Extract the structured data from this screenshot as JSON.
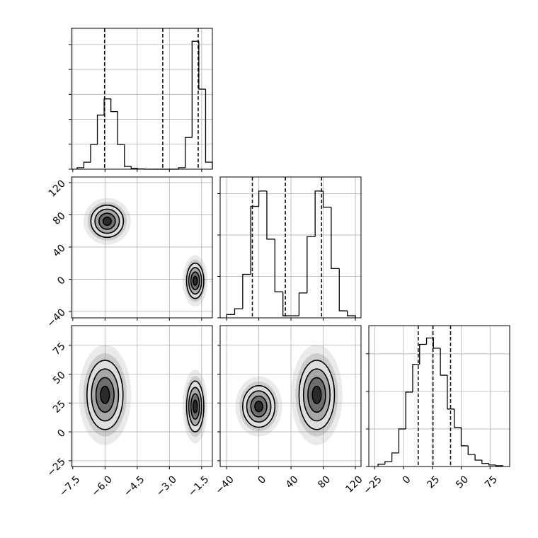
{
  "chart_data": {
    "type": "corner",
    "color": "#000000",
    "grid": true,
    "levels": [
      0.5,
      1,
      1.5,
      2
    ],
    "level_fills": [
      "#2a2a2a",
      "#6e6e6e",
      "#a8a8a8",
      "#dedede"
    ],
    "params": [
      {
        "xlim": [
          -7.56,
          -1.0
        ],
        "ticks": [
          {
            "value": -7.5,
            "label": "−7.5"
          },
          {
            "value": -6.0,
            "label": "−6.0"
          },
          {
            "value": -4.5,
            "label": "−4.5"
          },
          {
            "value": -3.0,
            "label": "−3.0"
          },
          {
            "value": -1.5,
            "label": "−1.5"
          }
        ]
      },
      {
        "xlim": [
          -48,
          127
        ],
        "ticks": [
          {
            "value": -40,
            "label": "−40"
          },
          0,
          40,
          80,
          120
        ]
      },
      {
        "xlim": [
          -30,
          92
        ],
        "ticks": [
          {
            "value": -25,
            "label": "−25"
          },
          0,
          25,
          50,
          75
        ]
      }
    ],
    "histograms": [
      {
        "bins": [
          -7.3,
          -6.985,
          -6.67,
          -6.355,
          -6.04,
          -5.725,
          -5.41,
          -5.095,
          -4.78,
          -4.465,
          -4.15,
          -3.835,
          -3.52,
          -3.205,
          -2.89,
          -2.575,
          -2.26,
          -1.945,
          -1.63,
          -1.315,
          -1.0
        ],
        "counts": [
          6,
          28,
          99,
          217,
          282,
          231,
          99,
          11,
          3,
          1,
          0,
          0,
          0,
          0,
          0,
          6,
          127,
          513,
          321,
          28
        ],
        "ylim": [
          0,
          565
        ],
        "yticks": [
          0,
          100,
          200,
          300,
          400,
          500
        ],
        "quantiles": [
          -6.02,
          -3.31,
          -1.66
        ]
      },
      {
        "bins": [
          -40,
          -30,
          -20,
          -10,
          0,
          10,
          20,
          30,
          40,
          50,
          60,
          70,
          80,
          90,
          100,
          110,
          120
        ],
        "counts": [
          8,
          22,
          105,
          269,
          306,
          190,
          63,
          5,
          5,
          60,
          196,
          306,
          267,
          119,
          17,
          5
        ],
        "ylim": [
          0,
          340
        ],
        "yticks": [
          0,
          100,
          200,
          300
        ],
        "quantiles": [
          -8,
          33,
          78
        ]
      },
      {
        "bins": [
          -22,
          -16,
          -10,
          -4,
          2,
          8,
          14,
          20,
          26,
          32,
          38,
          44,
          50,
          56,
          62,
          68,
          74,
          80,
          86
        ],
        "counts": [
          6,
          13,
          36,
          100,
          198,
          272,
          325,
          342,
          315,
          243,
          153,
          104,
          55,
          32,
          17,
          8,
          4,
          2
        ],
        "ylim": [
          0,
          375
        ],
        "yticks": [
          0,
          100,
          200,
          300
        ],
        "quantiles": [
          12.8,
          25.6,
          40.8
        ]
      }
    ],
    "pairs": [
      {
        "blobs": [
          {
            "cx": -5.9,
            "cy": 72,
            "sx": 0.38,
            "sy": 10
          },
          {
            "cx": -1.8,
            "cy": -2,
            "sx": 0.2,
            "sy": 11
          }
        ]
      },
      {
        "blobs": [
          {
            "cx": -6.0,
            "cy": 32,
            "sx": 0.42,
            "sy": 15
          },
          {
            "cx": -1.8,
            "cy": 22,
            "sx": 0.2,
            "sy": 11
          }
        ]
      },
      {
        "blobs": [
          {
            "cx": 0,
            "cy": 22,
            "sx": 10,
            "sy": 9
          },
          {
            "cx": 72,
            "cy": 32,
            "sx": 11,
            "sy": 15
          }
        ]
      }
    ]
  }
}
